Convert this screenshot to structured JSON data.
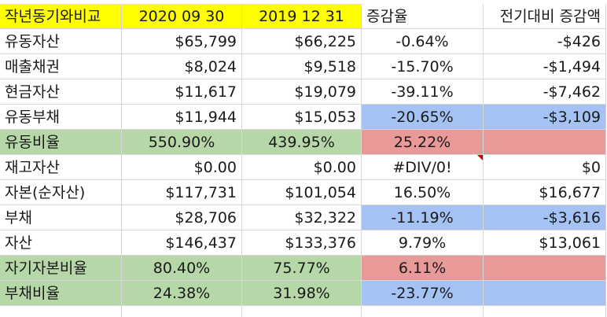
{
  "header": {
    "label": "작년동기와비교",
    "date_current": "2020 09 30",
    "date_previous": "2019 12 31",
    "change_rate": "증감율",
    "change_amount": "전기대비 증감액"
  },
  "rows": [
    {
      "label": "유동자산",
      "current": "$65,799",
      "previous": "$66,225",
      "rate": "-0.64%",
      "amount": "-$426"
    },
    {
      "label": "매출채권",
      "current": "$8,024",
      "previous": "$9,518",
      "rate": "-15.70%",
      "amount": "-$1,494"
    },
    {
      "label": "현금자산",
      "current": "$11,617",
      "previous": "$19,079",
      "rate": "-39.11%",
      "amount": "-$7,462"
    },
    {
      "label": "유동부채",
      "current": "$11,944",
      "previous": "$15,053",
      "rate": "-20.65%",
      "amount": "-$3,109"
    },
    {
      "label": "유동비율",
      "current": "550.90%",
      "previous": "439.95%",
      "rate": "25.22%",
      "amount": ""
    },
    {
      "label": "재고자산",
      "current": "$0.00",
      "previous": "$0.00",
      "rate": "#DIV/0!",
      "amount": "$0"
    },
    {
      "label": "자본(순자산)",
      "current": "$117,731",
      "previous": "$101,054",
      "rate": "16.50%",
      "amount": "$16,677"
    },
    {
      "label": "부채",
      "current": "$28,706",
      "previous": "$32,322",
      "rate": "-11.19%",
      "amount": "-$3,616"
    },
    {
      "label": "자산",
      "current": "$146,437",
      "previous": "$133,376",
      "rate": "9.79%",
      "amount": "$13,061"
    },
    {
      "label": "자기자본비율",
      "current": "80.40%",
      "previous": "75.77%",
      "rate": "6.11%",
      "amount": ""
    },
    {
      "label": "부채비율",
      "current": "24.38%",
      "previous": "31.98%",
      "rate": "-23.77%",
      "amount": ""
    }
  ],
  "colors": {
    "header_fill": "#ffff00",
    "ratio_row_fill": "#b6d7a8",
    "decrease_fill": "#a4c2f4",
    "increase_fill": "#ea9999",
    "error_marker": "#cc0000"
  }
}
